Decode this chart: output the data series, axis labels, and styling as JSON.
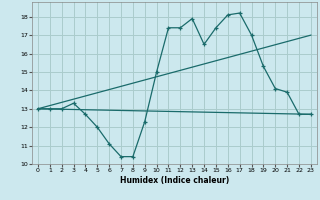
{
  "xlabel": "Humidex (Indice chaleur)",
  "bg_color": "#cce8ee",
  "grid_color": "#aacccc",
  "line_color": "#1a6b6b",
  "xlim": [
    -0.5,
    23.5
  ],
  "ylim": [
    10,
    18.8
  ],
  "yticks": [
    10,
    11,
    12,
    13,
    14,
    15,
    16,
    17,
    18
  ],
  "xticks": [
    0,
    1,
    2,
    3,
    4,
    5,
    6,
    7,
    8,
    9,
    10,
    11,
    12,
    13,
    14,
    15,
    16,
    17,
    18,
    19,
    20,
    21,
    22,
    23
  ],
  "series1_x": [
    0,
    1,
    2,
    3,
    4,
    5,
    6,
    7,
    8,
    9,
    10,
    11,
    12,
    13,
    14,
    15,
    16,
    17,
    18,
    19,
    20,
    21,
    22,
    23
  ],
  "series1_y": [
    13,
    13,
    13,
    13.3,
    12.7,
    12.0,
    11.1,
    10.4,
    10.4,
    12.3,
    15.0,
    17.4,
    17.4,
    17.9,
    16.5,
    17.4,
    18.1,
    18.2,
    17.0,
    15.3,
    14.1,
    13.9,
    12.7,
    12.7
  ],
  "series2_x": [
    0,
    23
  ],
  "series2_y": [
    13.0,
    12.7
  ],
  "series3_x": [
    0,
    23
  ],
  "series3_y": [
    13.0,
    17.0
  ]
}
